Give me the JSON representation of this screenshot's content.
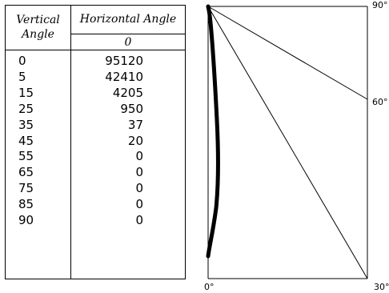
{
  "table": {
    "header_vertical_angle": "Vertical Angle",
    "header_vertical_angle_line1": "Vertical",
    "header_vertical_angle_line2": "Angle",
    "header_horizontal_angle": "Horizontal Angle",
    "horizontal_angle_value": "0",
    "rows": [
      {
        "vertical_angle": "0",
        "value": "95120"
      },
      {
        "vertical_angle": "5",
        "value": "42410"
      },
      {
        "vertical_angle": "15",
        "value": "4205"
      },
      {
        "vertical_angle": "25",
        "value": "950"
      },
      {
        "vertical_angle": "35",
        "value": "37"
      },
      {
        "vertical_angle": "45",
        "value": "20"
      },
      {
        "vertical_angle": "55",
        "value": "0"
      },
      {
        "vertical_angle": "65",
        "value": "0"
      },
      {
        "vertical_angle": "75",
        "value": "0"
      },
      {
        "vertical_angle": "85",
        "value": "0"
      },
      {
        "vertical_angle": "90",
        "value": "0"
      }
    ]
  },
  "chart_data": {
    "type": "polar-plot",
    "angle_labels": [
      "0°",
      "30°",
      "60°",
      "90°"
    ],
    "reference_angles_deg": [
      0,
      30,
      60,
      90
    ],
    "series": [
      {
        "angles_deg": [
          0,
          5,
          15,
          25,
          35,
          45,
          55,
          65,
          75,
          85,
          90
        ],
        "values": [
          95120,
          42410,
          4205,
          950,
          37,
          20,
          0,
          0,
          0,
          0,
          0
        ]
      }
    ],
    "curve_color": "#000000"
  }
}
